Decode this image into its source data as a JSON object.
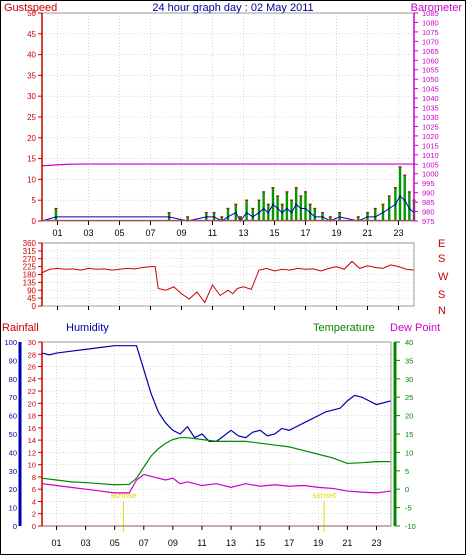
{
  "header": {
    "title": "24 hour graph day : 02 May 2011",
    "left_label": "Gustspeed",
    "right_label": "Barometer"
  },
  "colors": {
    "gust": "#cc0000",
    "wind": "#0000bb",
    "windbar": "#009900",
    "barometer": "#cc00cc",
    "direction": "#cc0000",
    "humidity": "#0000aa",
    "temperature": "#008800",
    "dewpoint": "#cc00cc",
    "rainfall": "#cc0000",
    "sun": "#e8d800",
    "grid": "#bbbbbb"
  },
  "panel2": {
    "compass": [
      "E",
      "S",
      "W",
      "S",
      "N"
    ]
  },
  "panel3": {
    "labels": {
      "rainfall": "Rainfall",
      "humidity": "Humidity",
      "temperature": "Temperature",
      "dewpoint": "Dew Point"
    },
    "sun_labels": {
      "sunrise": "sunrise",
      "sunset": "sunset"
    }
  },
  "chart_data": [
    {
      "id": "wind",
      "type": "line",
      "title": "24 hour graph day : 02 May 2011",
      "xlabel": "",
      "ylabel_left": "Gustspeed",
      "ylabel_right": "Barometer",
      "x_ticks": [
        "01",
        "03",
        "05",
        "07",
        "09",
        "11",
        "13",
        "15",
        "17",
        "19",
        "21",
        "23"
      ],
      "ylim_left": [
        0,
        50
      ],
      "yticks_left": [
        0,
        5,
        10,
        15,
        20,
        25,
        30,
        35,
        40,
        45,
        50
      ],
      "ylim_right": [
        975,
        1085
      ],
      "yticks_right": [
        975,
        980,
        985,
        990,
        995,
        1000,
        1005,
        1010,
        1015,
        1020,
        1025,
        1030,
        1035,
        1040,
        1045,
        1050,
        1055,
        1060,
        1065,
        1070,
        1075,
        1080,
        1085
      ],
      "barometer": {
        "x": [
          0,
          0.6,
          1.2,
          1.8,
          2.4,
          3,
          6,
          9,
          12,
          15,
          18,
          21,
          24
        ],
        "y": [
          1004.2,
          1004.5,
          1004.8,
          1005.0,
          1005.1,
          1005.1,
          1005.1,
          1005.1,
          1005.1,
          1005.1,
          1005.1,
          1005.1,
          1005.1
        ]
      },
      "gust_events": [
        {
          "x": 0.9,
          "gust": 3,
          "speed": 1
        },
        {
          "x": 8.2,
          "gust": 2,
          "speed": 1
        },
        {
          "x": 9.4,
          "gust": 1,
          "speed": 0
        },
        {
          "x": 10.6,
          "gust": 2,
          "speed": 1
        },
        {
          "x": 11.1,
          "gust": 2,
          "speed": 1
        },
        {
          "x": 11.6,
          "gust": 1,
          "speed": 0
        },
        {
          "x": 12.0,
          "gust": 3,
          "speed": 1
        },
        {
          "x": 12.5,
          "gust": 4,
          "speed": 2
        },
        {
          "x": 12.8,
          "gust": 1,
          "speed": 0
        },
        {
          "x": 13.2,
          "gust": 5,
          "speed": 2
        },
        {
          "x": 13.6,
          "gust": 3,
          "speed": 1
        },
        {
          "x": 14.0,
          "gust": 5,
          "speed": 2
        },
        {
          "x": 14.3,
          "gust": 7,
          "speed": 3
        },
        {
          "x": 14.6,
          "gust": 4,
          "speed": 2
        },
        {
          "x": 14.9,
          "gust": 8,
          "speed": 4
        },
        {
          "x": 15.2,
          "gust": 6,
          "speed": 3
        },
        {
          "x": 15.5,
          "gust": 4,
          "speed": 2
        },
        {
          "x": 15.8,
          "gust": 7,
          "speed": 3
        },
        {
          "x": 16.1,
          "gust": 5,
          "speed": 2
        },
        {
          "x": 16.4,
          "gust": 8,
          "speed": 4
        },
        {
          "x": 16.7,
          "gust": 6,
          "speed": 3
        },
        {
          "x": 17.0,
          "gust": 7,
          "speed": 3
        },
        {
          "x": 17.3,
          "gust": 4,
          "speed": 2
        },
        {
          "x": 17.6,
          "gust": 3,
          "speed": 1
        },
        {
          "x": 18.1,
          "gust": 2,
          "speed": 1
        },
        {
          "x": 18.6,
          "gust": 1,
          "speed": 0
        },
        {
          "x": 19.2,
          "gust": 2,
          "speed": 1
        },
        {
          "x": 20.4,
          "gust": 1,
          "speed": 0
        },
        {
          "x": 21.0,
          "gust": 2,
          "speed": 1
        },
        {
          "x": 21.5,
          "gust": 3,
          "speed": 1
        },
        {
          "x": 22.0,
          "gust": 4,
          "speed": 2
        },
        {
          "x": 22.4,
          "gust": 6,
          "speed": 3
        },
        {
          "x": 22.8,
          "gust": 8,
          "speed": 4
        },
        {
          "x": 23.1,
          "gust": 13,
          "speed": 6
        },
        {
          "x": 23.4,
          "gust": 11,
          "speed": 5
        },
        {
          "x": 23.7,
          "gust": 7,
          "speed": 3
        },
        {
          "x": 24.0,
          "gust": 5,
          "speed": 2
        }
      ]
    },
    {
      "id": "direction",
      "type": "line",
      "ylim": [
        0,
        360
      ],
      "yticks": [
        0,
        45,
        90,
        135,
        180,
        225,
        270,
        315,
        360
      ],
      "x_ticks": [
        "01",
        "03",
        "05",
        "07",
        "09",
        "11",
        "13",
        "15",
        "17",
        "19",
        "21",
        "23"
      ],
      "series": [
        {
          "x": [
            0,
            0.5,
            1,
            1.5,
            2,
            2.5,
            3,
            3.5,
            4,
            4.5,
            5,
            5.5,
            6,
            6.5,
            7,
            7.3,
            7.5,
            8,
            8.5,
            9,
            9.5,
            10,
            10.5,
            11,
            11.5,
            12,
            12.3,
            12.6,
            13,
            13.5,
            14,
            14.5,
            15,
            15.5,
            16,
            16.5,
            17,
            17.5,
            18,
            18.5,
            19,
            19.5,
            20,
            20.5,
            21,
            21.5,
            22,
            22.5,
            23,
            23.5,
            24
          ],
          "y": [
            190,
            210,
            215,
            210,
            212,
            205,
            215,
            210,
            212,
            205,
            210,
            215,
            212,
            220,
            225,
            225,
            100,
            90,
            110,
            70,
            40,
            80,
            20,
            120,
            60,
            90,
            70,
            100,
            110,
            95,
            205,
            215,
            200,
            210,
            205,
            215,
            210,
            212,
            200,
            215,
            225,
            210,
            255,
            215,
            230,
            220,
            215,
            235,
            225,
            210,
            205
          ]
        }
      ]
    },
    {
      "id": "thermo",
      "type": "line",
      "x_ticks": [
        "01",
        "03",
        "05",
        "07",
        "09",
        "11",
        "13",
        "15",
        "17",
        "19",
        "21",
        "23"
      ],
      "ylim_humidity": [
        0,
        100
      ],
      "yticks_humidity": [
        0,
        10,
        20,
        30,
        40,
        50,
        60,
        70,
        80,
        90,
        100
      ],
      "ylim_rain": [
        0,
        30
      ],
      "yticks_rain": [
        0,
        2,
        4,
        6,
        8,
        10,
        12,
        14,
        16,
        18,
        20,
        22,
        24,
        26,
        28,
        30
      ],
      "ylim_temp": [
        -10,
        40
      ],
      "yticks_temp": [
        -10,
        -5,
        0,
        5,
        10,
        15,
        20,
        25,
        30,
        35,
        40
      ],
      "sun_events": [
        {
          "label": "sunrise",
          "x": 5.6
        },
        {
          "label": "sunset",
          "x": 19.4
        }
      ],
      "series": [
        {
          "name": "Humidity",
          "axis": "humidity",
          "x": [
            0,
            0.5,
            1,
            2,
            3,
            4,
            5,
            6,
            6.5,
            7,
            7.5,
            8,
            8.5,
            9,
            9.5,
            10,
            10.5,
            11,
            11.5,
            12,
            12.5,
            13,
            13.5,
            14,
            14.5,
            15,
            15.5,
            16,
            16.5,
            17,
            17.5,
            18,
            18.5,
            19,
            19.5,
            20,
            20.5,
            21,
            21.5,
            22,
            22.5,
            23,
            23.5,
            24
          ],
          "y": [
            94,
            93,
            94,
            95,
            96,
            97,
            98,
            98,
            98,
            85,
            72,
            62,
            56,
            52,
            50,
            54,
            48,
            50,
            46,
            46,
            49,
            52,
            49,
            48,
            51,
            52,
            49,
            50,
            53,
            52,
            54,
            56,
            58,
            60,
            62,
            63,
            64,
            68,
            71,
            70,
            68,
            66,
            67,
            68
          ]
        },
        {
          "name": "Temperature",
          "axis": "temp",
          "x": [
            0,
            1,
            2,
            3,
            4,
            5,
            6,
            6.5,
            7,
            7.5,
            8,
            8.5,
            9,
            9.5,
            10,
            11,
            12,
            13,
            14,
            15,
            16,
            17,
            18,
            19,
            20,
            21,
            22,
            23,
            24
          ],
          "y": [
            3,
            2.5,
            2,
            1.8,
            1.5,
            1.2,
            1.3,
            3,
            6,
            9,
            11,
            12.5,
            13.5,
            14,
            14,
            13.5,
            13,
            13,
            13,
            12.5,
            12,
            11.5,
            10.5,
            9.5,
            8.5,
            7,
            7.2,
            7.5,
            7.5
          ]
        },
        {
          "name": "Dew Point",
          "axis": "temp",
          "x": [
            0,
            1,
            2,
            3,
            4,
            5,
            6,
            6.5,
            7,
            7.5,
            8,
            8.5,
            9,
            9.5,
            10,
            11,
            12,
            13,
            14,
            15,
            16,
            17,
            18,
            19,
            20,
            21,
            22,
            23,
            24
          ],
          "y": [
            1.5,
            1,
            0.5,
            0,
            -0.5,
            -1,
            -1,
            2.5,
            4,
            3.5,
            3,
            2.5,
            3,
            1.5,
            2,
            1,
            1.5,
            0.5,
            1.5,
            0.8,
            1.2,
            0.8,
            1,
            0.5,
            0.2,
            -0.5,
            -0.8,
            -1,
            -0.5
          ]
        },
        {
          "name": "Rainfall",
          "axis": "rain",
          "x": [
            0,
            24
          ],
          "y": [
            0,
            0
          ]
        }
      ]
    }
  ]
}
